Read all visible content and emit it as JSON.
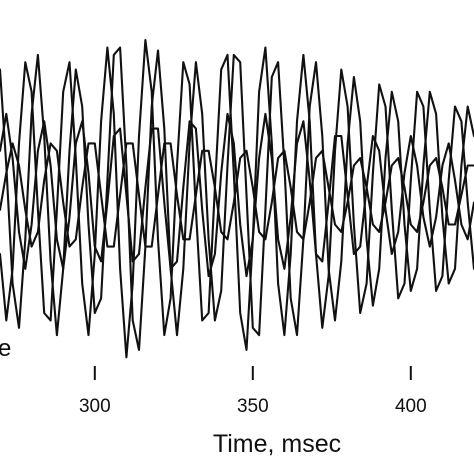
{
  "chart_data": {
    "type": "line",
    "title": "",
    "xlabel": "Time, msec",
    "ylabel": "",
    "xlim": [
      270,
      420
    ],
    "ylim": [
      -1.2,
      1.2
    ],
    "xticks": [
      300,
      350,
      400
    ],
    "grid": false,
    "legend": "none",
    "side_label": "e",
    "line_color": "#111111",
    "series": [
      {
        "x": [
          270,
          272,
          274,
          276,
          278,
          280,
          282,
          284,
          286,
          288,
          290,
          292,
          294,
          296,
          298,
          300,
          302,
          304,
          306,
          308,
          310,
          312,
          314,
          316,
          318,
          320,
          322,
          324,
          326,
          328,
          330,
          332,
          334,
          336,
          338,
          340,
          342,
          344,
          346,
          348,
          350,
          352,
          354,
          356,
          358,
          360,
          362,
          364,
          366,
          368,
          370,
          372,
          374,
          376,
          378,
          380,
          382,
          384,
          386,
          388,
          390,
          392,
          394,
          396,
          398,
          400,
          402,
          404,
          406,
          408,
          410,
          412,
          414,
          416,
          418,
          420
        ],
        "values": [
          0.85,
          0.2,
          -0.6,
          -0.9,
          -0.3,
          0.55,
          0.95,
          0.4,
          -0.45,
          -0.95,
          -0.5,
          0.3,
          0.85,
          0.6,
          -0.2,
          -0.8,
          -0.7,
          0.1,
          0.95,
          1.0,
          0.2,
          -0.85,
          -1.05,
          -0.35,
          0.6,
          0.98,
          0.45,
          -0.5,
          -0.95,
          -0.5,
          0.35,
          0.9,
          0.55,
          -0.3,
          -0.85,
          -0.65,
          0.2,
          0.95,
          0.9,
          0.0,
          -0.9,
          -0.95,
          -0.1,
          0.8,
          0.9,
          0.2,
          -0.7,
          -0.95,
          -0.3,
          0.6,
          0.9,
          0.4,
          -0.5,
          -0.85,
          -0.45,
          0.35,
          0.8,
          0.5,
          -0.3,
          -0.75,
          -0.5,
          0.25,
          0.7,
          0.5,
          -0.2,
          -0.65,
          -0.5,
          0.2,
          0.7,
          0.55,
          -0.15,
          -0.6,
          -0.5,
          0.2,
          0.6,
          0.4
        ]
      },
      {
        "x": [
          270,
          272,
          274,
          276,
          278,
          280,
          282,
          284,
          286,
          288,
          290,
          292,
          294,
          296,
          298,
          300,
          302,
          304,
          306,
          308,
          310,
          312,
          314,
          316,
          318,
          320,
          322,
          324,
          326,
          328,
          330,
          332,
          334,
          336,
          338,
          340,
          342,
          344,
          346,
          348,
          350,
          352,
          354,
          356,
          358,
          360,
          362,
          364,
          366,
          368,
          370,
          372,
          374,
          376,
          378,
          380,
          382,
          384,
          386,
          388,
          390,
          392,
          394,
          396,
          398,
          400,
          402,
          404,
          406,
          408,
          410,
          412,
          414,
          416,
          418,
          420
        ],
        "values": [
          -0.4,
          -0.85,
          -0.5,
          0.35,
          0.9,
          0.7,
          -0.1,
          -0.8,
          -0.85,
          -0.1,
          0.7,
          0.9,
          0.25,
          -0.6,
          -0.95,
          -0.4,
          0.5,
          1.0,
          0.55,
          -0.5,
          -1.1,
          -0.6,
          0.4,
          1.05,
          0.7,
          -0.3,
          -0.95,
          -0.7,
          0.2,
          0.9,
          0.75,
          -0.1,
          -0.85,
          -0.8,
          0.05,
          0.85,
          0.95,
          0.15,
          -0.8,
          -1.05,
          -0.3,
          0.7,
          1.0,
          0.35,
          -0.6,
          -0.95,
          -0.4,
          0.5,
          0.95,
          0.5,
          -0.4,
          -0.9,
          -0.55,
          0.3,
          0.85,
          0.6,
          -0.2,
          -0.8,
          -0.6,
          0.15,
          0.75,
          0.6,
          -0.1,
          -0.7,
          -0.6,
          0.1,
          0.7,
          0.6,
          -0.1,
          -0.65,
          -0.55,
          0.1,
          0.6,
          0.5,
          -0.05,
          -0.5
        ]
      },
      {
        "x": [
          270,
          272,
          274,
          276,
          278,
          280,
          282,
          284,
          286,
          288,
          290,
          292,
          294,
          296,
          298,
          300,
          302,
          304,
          306,
          308,
          310,
          312,
          314,
          316,
          318,
          320,
          322,
          324,
          326,
          328,
          330,
          332,
          334,
          336,
          338,
          340,
          342,
          344,
          346,
          348,
          350,
          352,
          354,
          356,
          358,
          360,
          362,
          364,
          366,
          368,
          370,
          372,
          374,
          376,
          378,
          380,
          382,
          384,
          386,
          388,
          390,
          392,
          394,
          396,
          398,
          400,
          402,
          404,
          406,
          408,
          410,
          412,
          414,
          416,
          418,
          420
        ],
        "values": [
          0.3,
          0.55,
          0.25,
          -0.25,
          -0.5,
          -0.2,
          0.3,
          0.5,
          0.2,
          -0.3,
          -0.5,
          -0.15,
          0.35,
          0.5,
          0.15,
          -0.35,
          -0.45,
          -0.05,
          0.4,
          0.45,
          0.0,
          -0.45,
          -0.4,
          0.05,
          0.45,
          0.45,
          -0.05,
          -0.5,
          -0.45,
          0.05,
          0.5,
          0.45,
          -0.1,
          -0.55,
          -0.4,
          0.15,
          0.55,
          0.35,
          -0.2,
          -0.55,
          -0.3,
          0.25,
          0.55,
          0.25,
          -0.3,
          -0.5,
          -0.15,
          0.35,
          0.5,
          0.1,
          -0.4,
          -0.45,
          -0.05,
          0.4,
          0.4,
          0.0,
          -0.4,
          -0.35,
          0.05,
          0.4,
          0.3,
          -0.1,
          -0.4,
          -0.25,
          0.15,
          0.4,
          0.2,
          -0.15,
          -0.35,
          -0.15,
          0.2,
          0.35,
          0.1,
          -0.2,
          -0.3,
          -0.05
        ]
      },
      {
        "x": [
          270,
          272,
          274,
          276,
          278,
          280,
          282,
          284,
          286,
          288,
          290,
          292,
          294,
          296,
          298,
          300,
          302,
          304,
          306,
          308,
          310,
          312,
          314,
          316,
          318,
          320,
          322,
          324,
          326,
          328,
          330,
          332,
          334,
          336,
          338,
          340,
          342,
          344,
          346,
          348,
          350,
          352,
          354,
          356,
          358,
          360,
          362,
          364,
          366,
          368,
          370,
          372,
          374,
          376,
          378,
          380,
          382,
          384,
          386,
          388,
          390,
          392,
          394,
          396,
          398,
          400,
          402,
          404,
          406,
          408,
          410,
          412,
          414,
          416,
          418,
          420
        ],
        "values": [
          -0.1,
          0.15,
          0.35,
          0.2,
          -0.1,
          -0.35,
          -0.25,
          0.1,
          0.35,
          0.3,
          -0.05,
          -0.35,
          -0.3,
          0.05,
          0.35,
          0.35,
          0.0,
          -0.35,
          -0.35,
          0.0,
          0.35,
          0.35,
          0.0,
          -0.35,
          -0.35,
          0.0,
          0.35,
          0.35,
          0.0,
          -0.3,
          -0.3,
          0.0,
          0.3,
          0.3,
          0.05,
          -0.25,
          -0.3,
          -0.05,
          0.25,
          0.3,
          0.05,
          -0.25,
          -0.3,
          -0.05,
          0.25,
          0.3,
          0.05,
          -0.25,
          -0.3,
          -0.05,
          0.25,
          0.3,
          0.05,
          -0.2,
          -0.25,
          -0.05,
          0.2,
          0.25,
          0.05,
          -0.2,
          -0.25,
          -0.05,
          0.2,
          0.25,
          0.05,
          -0.2,
          -0.25,
          -0.05,
          0.2,
          0.25,
          0.05,
          -0.2,
          -0.2,
          0.0,
          0.2,
          0.2
        ]
      }
    ]
  }
}
